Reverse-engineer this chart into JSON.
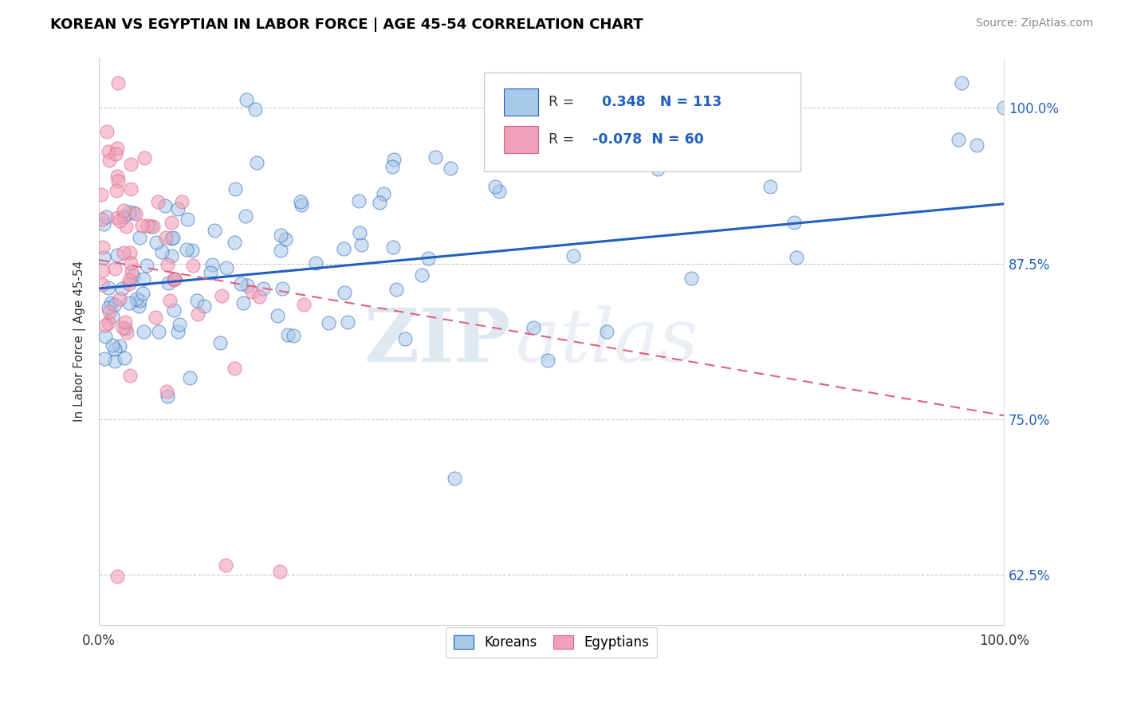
{
  "title": "KOREAN VS EGYPTIAN IN LABOR FORCE | AGE 45-54 CORRELATION CHART",
  "source": "Source: ZipAtlas.com",
  "ylabel": "In Labor Force | Age 45-54",
  "xlim": [
    0.0,
    1.0
  ],
  "ylim": [
    0.585,
    1.04
  ],
  "y_ticks": [
    0.625,
    0.75,
    0.875,
    1.0
  ],
  "y_tick_labels": [
    "62.5%",
    "75.0%",
    "87.5%",
    "100.0%"
  ],
  "korean_color": "#a8c8e8",
  "egyptian_color": "#f0a0b8",
  "korean_line_color": "#2060c0",
  "egyptian_line_color": "#e06080",
  "korean_fill_color": "#a8c8e8",
  "egyptian_fill_color": "#f0a0b8",
  "R_korean": 0.348,
  "N_korean": 113,
  "R_egyptian": -0.078,
  "N_egyptian": 60,
  "legend_label_korean": "Koreans",
  "legend_label_egyptian": "Egyptians",
  "background_color": "#ffffff",
  "grid_color": "#cccccc",
  "watermark_zip": "ZIP",
  "watermark_atlas": "atlas",
  "korean_slope": 0.068,
  "korean_intercept": 0.855,
  "egyptian_slope": -0.125,
  "egyptian_intercept": 0.878
}
